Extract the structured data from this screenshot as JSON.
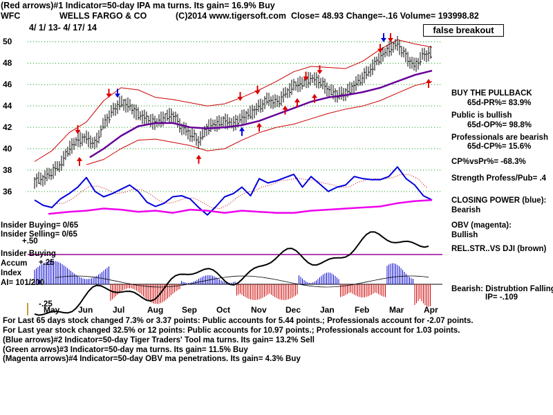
{
  "header": {
    "line1": "(Red arrows)#1 Indicator=50-day IPA ma turns. Its gain= 16.9% Buy",
    "symbol": "WFC",
    "company": "WELLS FARGO & CO",
    "copyright": "(C)2014 www.tigersoft.com",
    "quote": "Close=  48.93  Change=-.16 Volume= 193998.82",
    "date_range": "4/ 1/ 13-  4/ 17/ 14"
  },
  "annotation": "false breakout",
  "right_panel": {
    "pullback_title": "BUY THE PULLBACK",
    "pr": "65d-PR%= 83.9%",
    "public_title": "Public is bullish",
    "op": "65d-OP%= 98.8%",
    "pro_title": "Professionals are bearish",
    "cp": "65d-CP%= 15.6%",
    "cpvspr": "CP%vsPr%= -68.3%",
    "strength": "Strength Profess/Pub= .4",
    "cp_label": "CLOSING POWER (blue):",
    "cp_state": "Bearish",
    "obv_label": "OBV (magenta):",
    "obv_state": "Bullish",
    "relstr": "REL.STR..VS DJI (brown)",
    "accum_state": "Bearish: Distrubtion Falling",
    "ip": "IP= -.109"
  },
  "left_panel": {
    "insider_buying_count": "Insider Buying= 0/65",
    "insider_selling_count": "Insider Selling= 0/65",
    "plus50": "+.50",
    "insider_buying": "Insider Buying",
    "accum": "Accum",
    "plus25": "+.25",
    "index": "Index",
    "ai": "AI= 101/200",
    "minus25": "-.25"
  },
  "footer": {
    "line1": "For Last 65 days stock changed  7.3% or  3.37 points:  Public accounts for  5.44 points.;  Professionals account for -2.07 points.",
    "line2": "For Last year stock changed  32.5% or  12 points:  Public accounts for  10.97 points.;  Professionals account for  1.03 points.",
    "line3": "(Blue arrows)#2 Indicator=50-day Tiger Traders' Tool ma turns. Its gain= 13.2% Sell",
    "line4": "(Green arrows)#3 Indicator=50-day ma turns. Its gain= 11.5% Buy",
    "line5": "(Magenta arrows)#4 Indicator=50-day OBV ma penetrations. Its gain= 4.3% Buy"
  },
  "colors": {
    "price": "#000000",
    "band": "#cc0000",
    "ma50": "#660099",
    "closing_power": "#0000dd",
    "obv": "#ee00ee",
    "rel_str": "#000000",
    "accum_pos": "#0000cc",
    "accum_neg": "#cc0000",
    "insider_line": "#990099",
    "grid": "#009900",
    "red_arrow": "#dd0000",
    "blue_arrow": "#0000dd"
  },
  "chart_data": {
    "type": "line",
    "title": "WELLS FARGO & CO",
    "y_ticks": [
      50,
      48,
      46,
      44,
      42,
      40,
      38,
      36
    ],
    "ylim": [
      34.5,
      51
    ],
    "x_ticks": [
      "May",
      "Jun",
      "Jul",
      "Aug",
      "Sep",
      "Oct",
      "Nov",
      "Dec",
      "Jan",
      "Feb",
      "Mar",
      "Apr"
    ],
    "x_tick_positions": [
      0.5,
      1.5,
      2.5,
      3.5,
      4.5,
      5.5,
      6.5,
      7.5,
      8.5,
      9.5,
      10.5,
      11.5
    ],
    "x_range": [
      -0.2,
      11.8
    ],
    "series": [
      {
        "key": "price",
        "x": [
          0,
          0.25,
          0.5,
          0.75,
          1.0,
          1.25,
          1.5,
          1.75,
          2.0,
          2.25,
          2.5,
          2.75,
          3.0,
          3.25,
          3.5,
          3.75,
          4.0,
          4.25,
          4.5,
          4.75,
          5.0,
          5.25,
          5.5,
          5.75,
          6.0,
          6.25,
          6.5,
          6.75,
          7.0,
          7.25,
          7.5,
          7.75,
          8.0,
          8.25,
          8.5,
          8.75,
          9.0,
          9.25,
          9.5,
          9.75,
          10.0,
          10.25,
          10.5,
          10.75,
          11.0,
          11.25,
          11.5
        ],
        "y": [
          37.0,
          37.2,
          37.8,
          38.5,
          40.0,
          40.8,
          41.0,
          40.4,
          42.3,
          43.5,
          44.3,
          44.0,
          43.2,
          42.8,
          42.4,
          42.9,
          43.2,
          42.0,
          41.4,
          40.7,
          42.0,
          42.3,
          42.6,
          42.3,
          42.9,
          43.3,
          43.9,
          44.6,
          44.3,
          45.1,
          45.9,
          46.1,
          46.6,
          46.3,
          45.5,
          45.0,
          45.2,
          45.9,
          46.7,
          47.5,
          48.6,
          49.3,
          49.8,
          48.6,
          47.7,
          48.8,
          48.9
        ]
      },
      {
        "key": "ma50",
        "x": [
          1.6,
          2.0,
          2.5,
          3.0,
          3.5,
          4.0,
          4.5,
          5.0,
          5.5,
          6.0,
          6.5,
          7.0,
          7.5,
          8.0,
          8.5,
          9.0,
          9.5,
          10.0,
          10.5,
          11.0,
          11.5
        ],
        "y": [
          39.2,
          40.0,
          41.2,
          42.1,
          42.4,
          42.4,
          42.0,
          41.9,
          42.0,
          42.2,
          42.6,
          43.2,
          43.8,
          44.4,
          44.8,
          45.0,
          45.3,
          45.7,
          46.3,
          46.9,
          47.3
        ]
      },
      {
        "key": "upper_band",
        "x": [
          0,
          0.5,
          1.0,
          1.5,
          2.0,
          2.5,
          3.0,
          3.5,
          4.0,
          4.5,
          5.0,
          5.5,
          6.0,
          6.5,
          7.0,
          7.5,
          8.0,
          8.5,
          9.0,
          9.5,
          10.0,
          10.5,
          11.0,
          11.5
        ],
        "y": [
          38.8,
          39.8,
          41.5,
          42.5,
          44.5,
          45.7,
          45.5,
          44.8,
          44.6,
          44.3,
          44.0,
          44.2,
          44.8,
          45.5,
          46.3,
          47.2,
          47.7,
          47.6,
          47.5,
          48.2,
          49.3,
          50.2,
          49.8,
          49.5
        ]
      },
      {
        "key": "lower_band",
        "x": [
          1.5,
          2.0,
          2.5,
          3.0,
          3.5,
          4.0,
          4.5,
          5.0,
          5.5,
          6.0,
          6.5,
          7.0,
          7.5,
          8.0,
          8.5,
          9.0,
          9.5,
          10.0,
          10.5,
          11.0,
          11.5
        ],
        "y": [
          38.5,
          39.0,
          40.0,
          40.8,
          40.9,
          40.6,
          40.3,
          39.8,
          40.0,
          40.8,
          41.5,
          42.0,
          42.3,
          42.8,
          43.3,
          43.7,
          44.0,
          44.5,
          45.2,
          45.9,
          46.3
        ]
      },
      {
        "key": "closing_power",
        "x": [
          0,
          0.25,
          0.5,
          0.75,
          1.0,
          1.25,
          1.5,
          1.75,
          2.0,
          2.25,
          2.5,
          2.75,
          3.0,
          3.25,
          3.5,
          3.75,
          4.0,
          4.25,
          4.5,
          4.75,
          5.0,
          5.25,
          5.5,
          5.75,
          6.0,
          6.25,
          6.5,
          6.75,
          7.0,
          7.25,
          7.5,
          7.75,
          8.0,
          8.25,
          8.5,
          8.75,
          9.0,
          9.25,
          9.5,
          9.75,
          10.0,
          10.25,
          10.5,
          10.75,
          11.0,
          11.25,
          11.5
        ],
        "y": [
          35.2,
          34.7,
          34.5,
          35.3,
          35.8,
          36.4,
          37.3,
          36.0,
          35.5,
          35.8,
          36.2,
          36.6,
          36.0,
          35.0,
          34.6,
          34.9,
          35.5,
          35.6,
          35.3,
          34.5,
          33.8,
          34.6,
          35.5,
          35.8,
          36.4,
          35.6,
          37.2,
          36.8,
          37.0,
          37.3,
          37.6,
          36.4,
          37.4,
          36.7,
          36.0,
          36.4,
          36.6,
          37.4,
          37.2,
          37.1,
          37.1,
          37.4,
          38.3,
          37.2,
          36.6,
          35.6,
          35.2
        ]
      },
      {
        "key": "obv",
        "x": [
          0.4,
          1.0,
          1.5,
          2.0,
          2.5,
          3.0,
          3.5,
          4.0,
          4.5,
          5.0,
          5.5,
          6.0,
          6.5,
          7.0,
          7.5,
          8.0,
          8.5,
          9.0,
          9.5,
          10.0,
          10.5,
          11.0,
          11.5
        ],
        "y": [
          33.9,
          34.1,
          34.2,
          34.4,
          34.3,
          34.1,
          34.2,
          34.0,
          34.3,
          34.2,
          34.0,
          34.2,
          34.1,
          34.0,
          34.0,
          34.2,
          34.3,
          34.4,
          34.5,
          34.6,
          34.9,
          35.1,
          35.2
        ]
      }
    ]
  }
}
